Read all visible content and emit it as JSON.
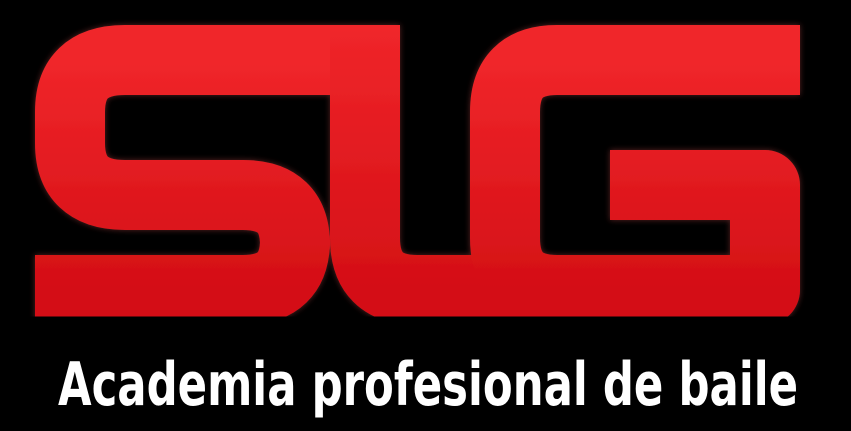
{
  "tagline": "Academia profesional de baile"
}
